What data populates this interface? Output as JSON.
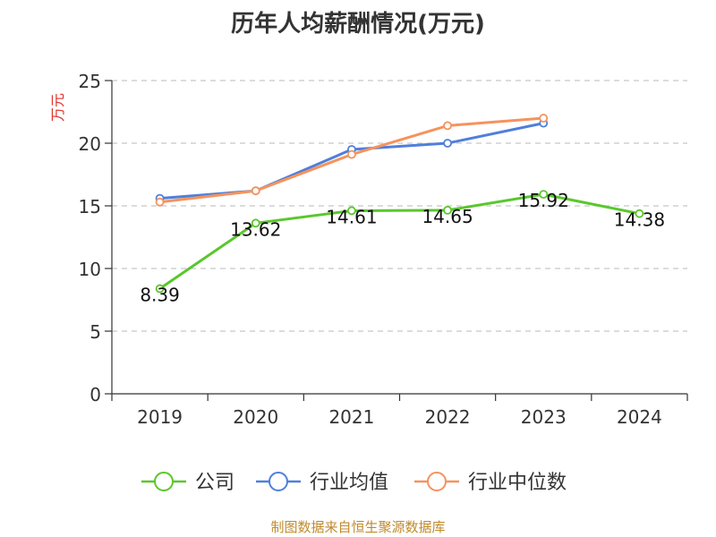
{
  "chart_data": {
    "type": "line",
    "title": "历年人均薪酬情况(万元)",
    "ylabel": "万元",
    "xlabel": "",
    "categories": [
      "2019",
      "2020",
      "2021",
      "2022",
      "2023",
      "2024"
    ],
    "ylim": [
      0,
      25
    ],
    "yticks": [
      "0",
      "5",
      "10",
      "15",
      "20",
      "25"
    ],
    "grid": true,
    "legend_position": "bottom",
    "series": [
      {
        "name": "公司",
        "color": "#5ac72d",
        "values": [
          8.39,
          13.62,
          14.61,
          14.65,
          15.92,
          14.38
        ],
        "labels": [
          "8.39",
          "13.62",
          "14.61",
          "14.65",
          "15.92",
          "14.38"
        ]
      },
      {
        "name": "行业均值",
        "color": "#4f7fdb",
        "values": [
          15.6,
          16.2,
          19.5,
          20.0,
          21.6,
          null
        ]
      },
      {
        "name": "行业中位数",
        "color": "#f5935d",
        "values": [
          15.3,
          16.2,
          19.1,
          21.4,
          22.0,
          null
        ]
      }
    ]
  },
  "ylabel_color": "#e0302a",
  "source": {
    "text": "制图数据来自恒生聚源数据库",
    "color": "#c08a2c"
  }
}
